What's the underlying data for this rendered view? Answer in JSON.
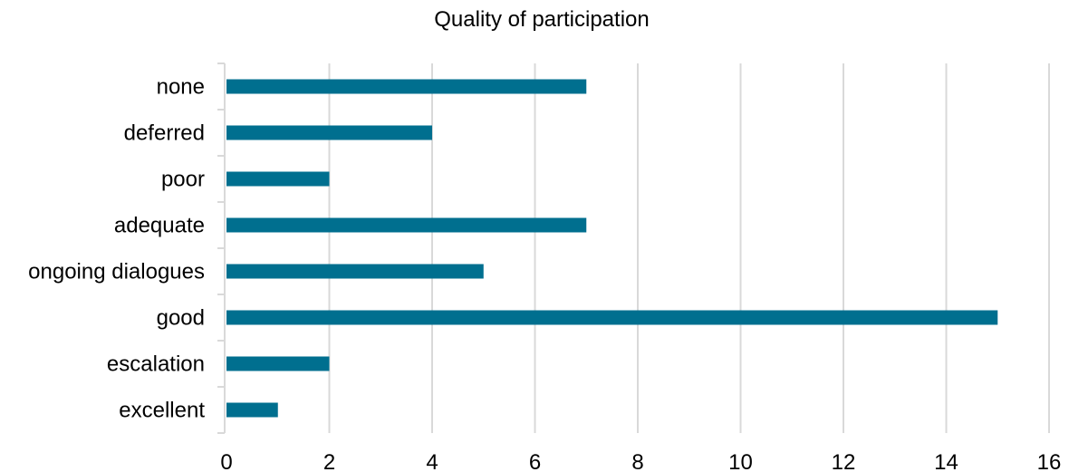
{
  "chart_data": {
    "type": "bar",
    "orientation": "horizontal",
    "title": "Quality of participation",
    "categories": [
      "none",
      "deferred",
      "poor",
      "adequate",
      "ongoing dialogues",
      "good",
      "escalation",
      "excellent"
    ],
    "values": [
      7,
      4,
      2,
      7,
      5,
      15,
      2,
      1
    ],
    "xlim": [
      0,
      16
    ],
    "x_ticks": [
      "0",
      "2",
      "4",
      "6",
      "8",
      "10",
      "12",
      "14",
      "16"
    ],
    "xlabel": "",
    "ylabel": "",
    "grid": "vertical",
    "legend": "none",
    "bar_color": "#006F8F",
    "grid_color": "#D9D9D9"
  }
}
